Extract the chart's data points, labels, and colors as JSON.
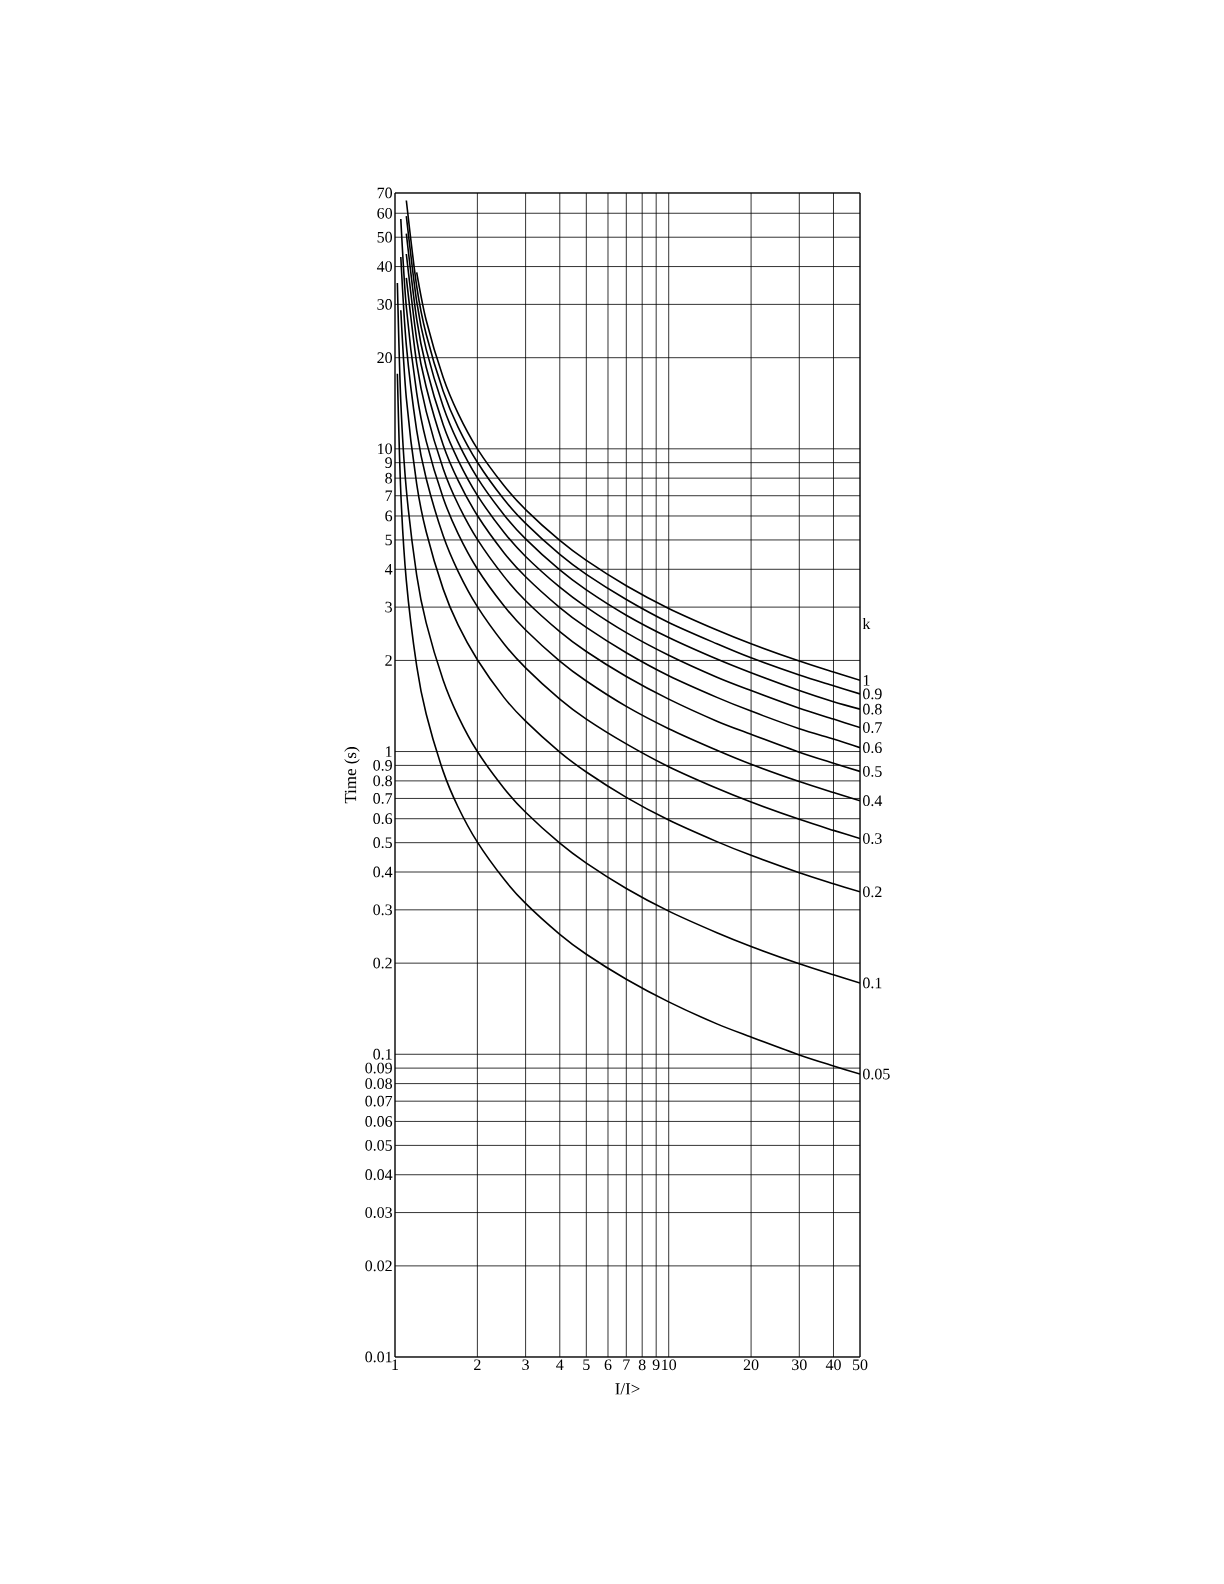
{
  "chart_data": {
    "type": "line",
    "xlabel": "I/I>",
    "ylabel": "Time (s)",
    "legend_title": "k",
    "log": "xy",
    "grid": true,
    "color": "#000000",
    "x": [
      1.02,
      1.05,
      1.1,
      1.2,
      1.3,
      1.5,
      1.7,
      2,
      2.5,
      3,
      4,
      5,
      7,
      10,
      15,
      20,
      30,
      40,
      50
    ],
    "xlim": [
      1,
      50
    ],
    "ylim": [
      0.01,
      70
    ],
    "xticks": [
      1,
      2,
      3,
      4,
      5,
      6,
      7,
      8,
      9,
      10,
      20,
      30,
      40,
      50
    ],
    "yticks": [
      0.01,
      0.02,
      0.03,
      0.04,
      0.05,
      0.06,
      0.07,
      0.08,
      0.09,
      0.1,
      0.2,
      0.3,
      0.4,
      0.5,
      0.6,
      0.7,
      0.8,
      0.9,
      1,
      2,
      3,
      4,
      5,
      6,
      7,
      8,
      9,
      10,
      20,
      30,
      40,
      50,
      60,
      70
    ],
    "series": [
      {
        "name": "1",
        "values": [
          null,
          null,
          null,
          38.3,
          26.6,
          17.2,
          13.1,
          10.0,
          7.57,
          6.3,
          4.98,
          4.28,
          3.53,
          2.97,
          2.52,
          2.27,
          1.99,
          1.83,
          1.72
        ]
      },
      {
        "name": "0.9",
        "values": [
          null,
          null,
          66.1,
          34.5,
          23.9,
          15.5,
          11.8,
          9.03,
          6.81,
          5.67,
          4.48,
          3.85,
          3.18,
          2.67,
          2.27,
          2.04,
          1.79,
          1.65,
          1.55
        ]
      },
      {
        "name": "0.8",
        "values": [
          null,
          null,
          58.7,
          30.7,
          21.3,
          13.8,
          10.5,
          8.02,
          6.06,
          5.04,
          3.98,
          3.42,
          2.82,
          2.38,
          2.02,
          1.82,
          1.59,
          1.46,
          1.38
        ]
      },
      {
        "name": "0.7",
        "values": [
          null,
          null,
          51.4,
          26.8,
          18.6,
          12.0,
          9.18,
          7.02,
          5.3,
          4.41,
          3.49,
          3.0,
          2.47,
          2.08,
          1.76,
          1.59,
          1.39,
          1.28,
          1.2
        ]
      },
      {
        "name": "0.6",
        "values": [
          null,
          null,
          44.0,
          23.0,
          16.0,
          10.3,
          7.87,
          6.02,
          4.54,
          3.78,
          2.99,
          2.57,
          2.12,
          1.78,
          1.51,
          1.36,
          1.19,
          1.1,
          1.03
        ]
      },
      {
        "name": "0.5",
        "values": [
          null,
          null,
          36.7,
          19.2,
          13.3,
          8.6,
          6.56,
          5.02,
          3.79,
          3.15,
          2.49,
          2.14,
          1.77,
          1.49,
          1.26,
          1.14,
          0.995,
          0.915,
          0.86
        ]
      },
      {
        "name": "0.4",
        "values": [
          null,
          57.4,
          29.4,
          15.3,
          10.6,
          6.88,
          5.25,
          4.01,
          3.03,
          2.52,
          1.99,
          1.71,
          1.41,
          1.19,
          1.01,
          0.908,
          0.796,
          0.732,
          0.688
        ]
      },
      {
        "name": "0.3",
        "values": [
          null,
          43.0,
          22.0,
          11.5,
          7.98,
          5.16,
          3.94,
          3.01,
          2.27,
          1.89,
          1.49,
          1.28,
          1.06,
          0.891,
          0.756,
          0.681,
          0.597,
          0.549,
          0.516
        ]
      },
      {
        "name": "0.2",
        "values": [
          null,
          28.7,
          14.7,
          7.66,
          5.32,
          3.44,
          2.62,
          2.01,
          1.51,
          1.26,
          0.996,
          0.856,
          0.706,
          0.594,
          0.504,
          0.454,
          0.398,
          0.366,
          0.344
        ]
      },
      {
        "name": "0.1",
        "values": [
          35.3,
          14.3,
          7.34,
          3.83,
          2.66,
          1.72,
          1.31,
          1.0,
          0.757,
          0.63,
          0.498,
          0.428,
          0.353,
          0.297,
          0.252,
          0.227,
          0.199,
          0.183,
          0.172
        ]
      },
      {
        "name": "0.05",
        "values": [
          17.7,
          7.17,
          3.67,
          1.92,
          1.33,
          0.86,
          0.656,
          0.502,
          0.379,
          0.315,
          0.249,
          0.214,
          0.177,
          0.149,
          0.126,
          0.114,
          0.0995,
          0.0915,
          0.086
        ]
      }
    ]
  }
}
